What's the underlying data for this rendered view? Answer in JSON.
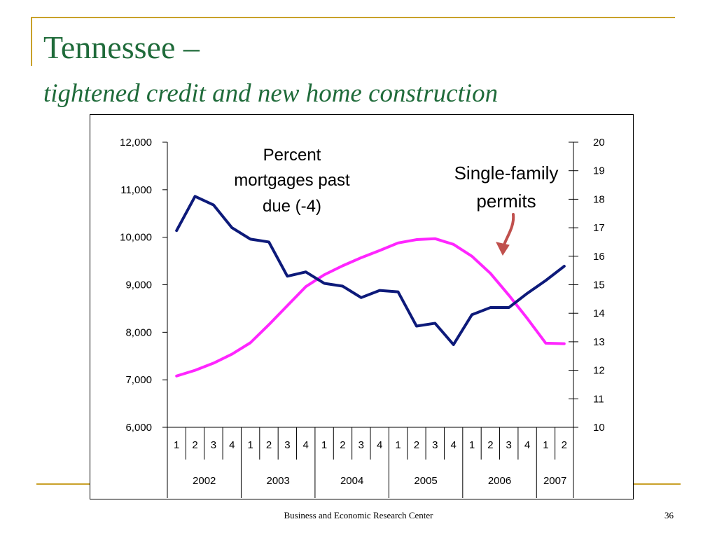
{
  "slide": {
    "title": "Tennessee –",
    "subtitle": "tightened credit and new home construction",
    "footer": "Business and Economic Research Center",
    "page_number": "36"
  },
  "colors": {
    "accent": "#c9a12a",
    "title": "#1f6b3a",
    "delinquency": "#0d1a7a",
    "permits": "#ff26ff",
    "arrow": "#c0504d"
  },
  "chart_data": {
    "type": "line",
    "categories": [
      "1",
      "2",
      "3",
      "4",
      "1",
      "2",
      "3",
      "4",
      "1",
      "2",
      "3",
      "4",
      "1",
      "2",
      "3",
      "4",
      "1",
      "2",
      "3",
      "4",
      "1",
      "2"
    ],
    "year_groups": [
      {
        "label": "2002",
        "quarters": 4
      },
      {
        "label": "2003",
        "quarters": 4
      },
      {
        "label": "2004",
        "quarters": 4
      },
      {
        "label": "2005",
        "quarters": 4
      },
      {
        "label": "2006",
        "quarters": 4
      },
      {
        "label": "2007",
        "quarters": 2
      }
    ],
    "left_axis": {
      "min": 6000,
      "max": 12000,
      "ticks": [
        "6,000",
        "7,000",
        "8,000",
        "9,000",
        "10,000",
        "11,000",
        "12,000"
      ],
      "tick_values": [
        6000,
        7000,
        8000,
        9000,
        10000,
        11000,
        12000
      ]
    },
    "right_axis": {
      "min": 10,
      "max": 20,
      "ticks": [
        "10",
        "11",
        "12",
        "13",
        "14",
        "15",
        "16",
        "17",
        "18",
        "19",
        "20"
      ],
      "tick_values": [
        10,
        11,
        12,
        13,
        14,
        15,
        16,
        17,
        18,
        19,
        20
      ]
    },
    "series": [
      {
        "axis": "right",
        "values": [
          16.9,
          18.1,
          17.8,
          17.0,
          16.6,
          16.5,
          15.3,
          15.45,
          15.05,
          14.95,
          14.55,
          14.8,
          14.75,
          13.55,
          13.65,
          12.9,
          13.95,
          14.2,
          14.2,
          14.7,
          15.15,
          15.65
        ]
      },
      {
        "axis": "left",
        "values": [
          7080,
          7200,
          7350,
          7540,
          7780,
          8160,
          8560,
          8960,
          9210,
          9400,
          9570,
          9720,
          9880,
          9950,
          9970,
          9850,
          9600,
          9240,
          8780,
          8290,
          7770,
          7760
        ]
      }
    ],
    "annotations": [
      {
        "id": "delinquency",
        "lines": [
          "Percent",
          "mortgages past",
          "due (-4)"
        ]
      },
      {
        "id": "permits",
        "lines": [
          "Single-family",
          "permits"
        ]
      }
    ]
  }
}
